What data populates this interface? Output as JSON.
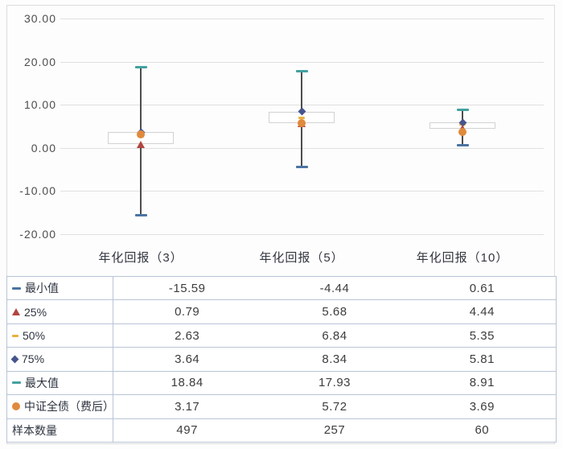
{
  "chart_data": {
    "type": "boxplot",
    "title": "",
    "xlabel": "",
    "ylabel": "",
    "categories": [
      "年化回报（3）",
      "年化回报（5）",
      "年化回报（10）"
    ],
    "y_ticks": [
      30,
      20,
      10,
      0,
      -10,
      -20
    ],
    "y_tick_labels": [
      "30.00",
      "20.00",
      "10.00",
      "0.00",
      "-10.00",
      "-20.00"
    ],
    "ylim": [
      -24,
      32
    ],
    "grid": true,
    "legend_position": "table-below",
    "benchmark_name": "中证全债（费后）",
    "series": [
      {
        "category": "年化回报（3）",
        "min": -15.59,
        "q25": 0.79,
        "median": 2.63,
        "q75": 3.64,
        "max": 18.84,
        "benchmark": 3.17,
        "samples": 497
      },
      {
        "category": "年化回报（5）",
        "min": -4.44,
        "q25": 5.68,
        "median": 6.84,
        "q75": 8.34,
        "max": 17.93,
        "benchmark": 5.72,
        "samples": 257
      },
      {
        "category": "年化回报（10）",
        "min": 0.61,
        "q25": 4.44,
        "median": 5.35,
        "q75": 5.81,
        "max": 8.91,
        "benchmark": 3.69,
        "samples": 60
      }
    ]
  },
  "table": {
    "rows": [
      {
        "marker": "min",
        "icon": "min-dash-icon",
        "label": "最小值",
        "values": [
          "-15.59",
          "-4.44",
          "0.61"
        ]
      },
      {
        "marker": "q25",
        "icon": "q25-triangle-icon",
        "label": "25%",
        "values": [
          "0.79",
          "5.68",
          "4.44"
        ]
      },
      {
        "marker": "median",
        "icon": "median-dash-icon",
        "label": "50%",
        "values": [
          "2.63",
          "6.84",
          "5.35"
        ]
      },
      {
        "marker": "q75",
        "icon": "q75-diamond-icon",
        "label": "75%",
        "values": [
          "3.64",
          "8.34",
          "5.81"
        ]
      },
      {
        "marker": "max",
        "icon": "max-dash-icon",
        "label": "最大值",
        "values": [
          "18.84",
          "17.93",
          "8.91"
        ]
      },
      {
        "marker": "benchmark",
        "icon": "benchmark-circle-icon",
        "label": "中证全债（费后）",
        "values": [
          "3.17",
          "5.72",
          "3.69"
        ]
      },
      {
        "marker": null,
        "icon": null,
        "label": "样本数量",
        "values": [
          "497",
          "257",
          "60"
        ]
      }
    ]
  },
  "colors": {
    "min_cap": "#4b74a3",
    "max_cap": "#43a2a0",
    "median_dash": "#e9b13e",
    "q25_triangle": "#b2453f",
    "q75_diamond": "#47548e",
    "benchmark_circle": "#e08a3c",
    "whisker": "#4d4d4d",
    "grid_line": "#e0e0e0",
    "box_border": "#d2d2d2",
    "table_border": "#b9c5d6",
    "text_dark": "#2e3440"
  }
}
